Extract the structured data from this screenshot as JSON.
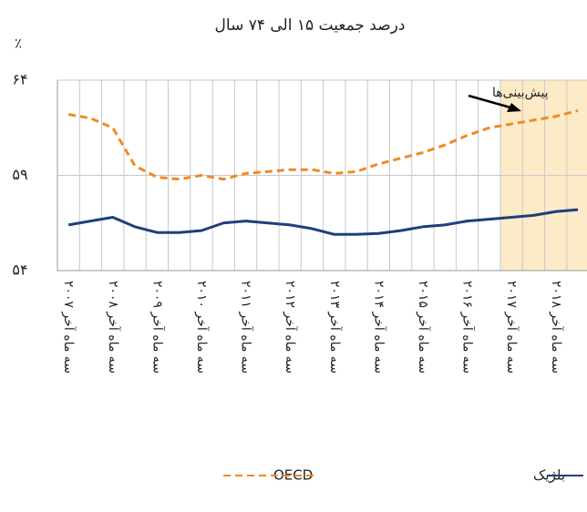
{
  "chart_data": {
    "type": "line",
    "title": "درصد جمعیت ۱۵ الی ۷۴ سال",
    "y_label": "٪",
    "annotation": "پیش‌بینی‌ها",
    "shaded_from": 20,
    "shade_color": "#fdebc8",
    "categories": [
      "سه ماه آخر ۲۰۰۷",
      null,
      "سه ماه آخر ۲۰۰۸",
      null,
      "سه ماه آخر ۲۰۰۹",
      null,
      "سه ماه آخر ۲۰۱۰",
      null,
      "سه ماه آخر ۲۰۱۱",
      null,
      "سه ماه آخر ۲۰۱۲",
      null,
      "سه ماه آخر ۲۰۱۳",
      null,
      "سه ماه آخر ۲۰۱۴",
      null,
      "سه ماه آخر ۲۰۱۵",
      null,
      "سه ماه آخر ۲۰۱۶",
      null,
      "سه ماه آخر ۲۰۱۷",
      null,
      "سه ماه آخر ۲۰۱۸",
      null
    ],
    "series": [
      {
        "name": "بلژیک",
        "color": "#1f3f7a",
        "dash": false,
        "values": [
          56.4,
          56.6,
          56.8,
          56.3,
          56.0,
          56.0,
          56.1,
          56.5,
          56.6,
          56.5,
          56.4,
          56.2,
          55.9,
          55.9,
          55.95,
          56.1,
          56.3,
          56.4,
          56.6,
          56.7,
          56.8,
          56.9,
          57.1,
          57.2
        ]
      },
      {
        "name": "OECD",
        "color": "#f08a24",
        "dash": true,
        "values": [
          62.2,
          62.0,
          61.5,
          59.5,
          58.9,
          58.8,
          59.0,
          58.8,
          59.1,
          59.2,
          59.3,
          59.3,
          59.1,
          59.2,
          59.6,
          59.9,
          60.2,
          60.6,
          61.1,
          61.5,
          61.7,
          61.9,
          62.1,
          62.4
        ]
      }
    ],
    "ylim": [
      54,
      64
    ],
    "yticks": [
      {
        "value": 54,
        "label": "۵۴"
      },
      {
        "value": 59,
        "label": "۵۹"
      },
      {
        "value": 64,
        "label": "۶۴"
      }
    ],
    "grid": true
  }
}
